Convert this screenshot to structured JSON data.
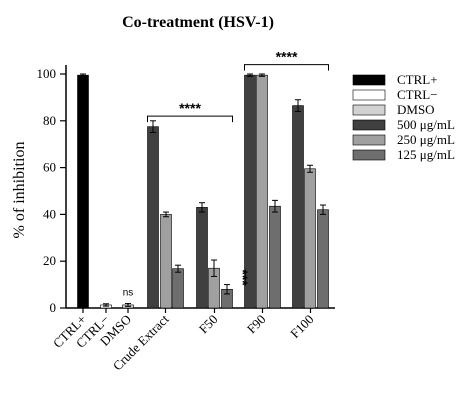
{
  "chart_data": {
    "type": "bar",
    "title": "Co-treatment (HSV-1)",
    "ylabel": "% of inhibition",
    "xlabel": "",
    "ylim": [
      0,
      100
    ],
    "yticks": [
      "0",
      "20",
      "40",
      "60",
      "80",
      "100"
    ],
    "legend_position": "right",
    "legend": [
      {
        "label": "CTRL+",
        "color": "#000000",
        "fill": "#000000"
      },
      {
        "label": "CTRL−",
        "color": "#ffffff",
        "fill": "#ffffff"
      },
      {
        "label": "DMSO",
        "color": "#d2d2d2",
        "fill": "#d2d2d2"
      },
      {
        "label": "500 μg/mL",
        "color": "#404040",
        "fill": "#404040"
      },
      {
        "label": "250 μg/mL",
        "color": "#a0a0a0",
        "fill": "#a0a0a0"
      },
      {
        "label": "125 μg/mL",
        "color": "#6e6e6e",
        "fill": "#6e6e6e"
      }
    ],
    "groups": [
      {
        "label": "CTRL+",
        "bars": [
          {
            "series": "CTRL+",
            "value": 99.5,
            "error": 0.5
          }
        ]
      },
      {
        "label": "CTRL−",
        "bars": [
          {
            "series": "CTRL−",
            "value": 1.3,
            "error": 0.5
          }
        ]
      },
      {
        "label": "DMSO",
        "bars": [
          {
            "series": "DMSO",
            "value": 1.3,
            "error": 0.6
          }
        ],
        "annotation": "ns"
      },
      {
        "label": "Crude Extract",
        "bars": [
          {
            "series": "500 μg/mL",
            "value": 77.5,
            "error": 2.5
          },
          {
            "series": "250 μg/mL",
            "value": 40.0,
            "error": 1.0
          },
          {
            "series": "125 μg/mL",
            "value": 16.8,
            "error": 1.5
          }
        ]
      },
      {
        "label": "F50",
        "bars": [
          {
            "series": "500 μg/mL",
            "value": 43.0,
            "error": 2.0
          },
          {
            "series": "250 μg/mL",
            "value": 17.0,
            "error": 3.5
          },
          {
            "series": "125 μg/mL",
            "value": 8.0,
            "error": 2.0
          }
        ],
        "annotation": "***"
      },
      {
        "label": "F90",
        "bars": [
          {
            "series": "500 μg/mL",
            "value": 99.5,
            "error": 0.5
          },
          {
            "series": "250 μg/mL",
            "value": 99.5,
            "error": 0.5
          },
          {
            "series": "125 μg/mL",
            "value": 43.5,
            "error": 2.5
          }
        ]
      },
      {
        "label": "F100",
        "bars": [
          {
            "series": "500 μg/mL",
            "value": 86.5,
            "error": 2.5
          },
          {
            "series": "250 μg/mL",
            "value": 59.5,
            "error": 1.5
          },
          {
            "series": "125 μg/mL",
            "value": 42.0,
            "error": 2.0
          }
        ]
      }
    ],
    "significance_brackets": [
      {
        "text": "****",
        "from_group": "Crude Extract",
        "to_group": "F50",
        "y": 82
      },
      {
        "text": "****",
        "from_group": "F90",
        "to_group": "F100",
        "y": 104
      }
    ]
  }
}
